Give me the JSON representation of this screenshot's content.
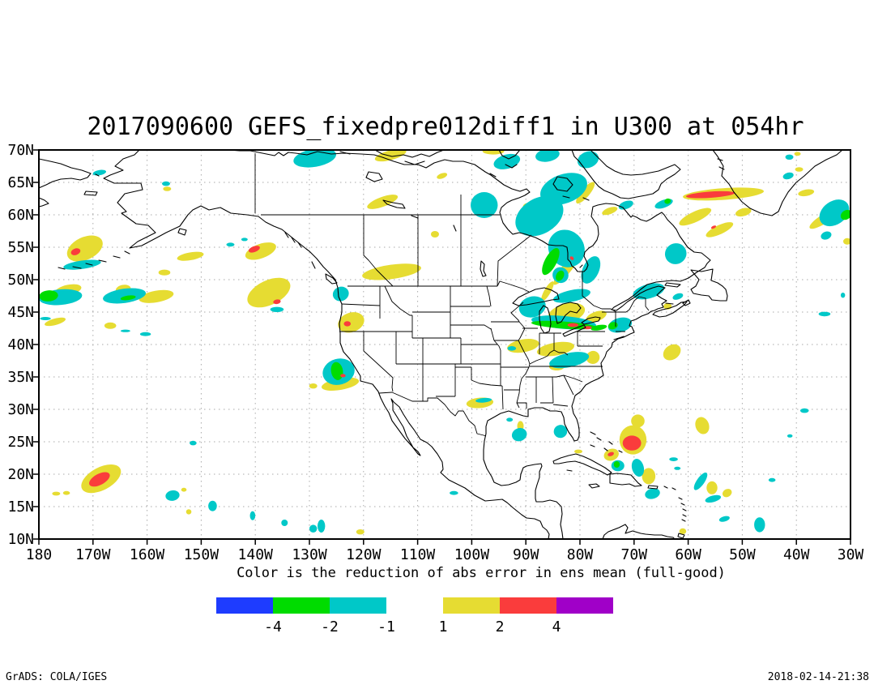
{
  "title": "2017090600 GEFS_fixedpre012diff1 in U300 at 054hr",
  "caption": "Color is the reduction of abs error in ens mean (full-good)",
  "footer": {
    "left": "GrADS: COLA/IGES",
    "right": "2018-02-14-21:38"
  },
  "axes": {
    "lat_labels": [
      "70N",
      "65N",
      "60N",
      "55N",
      "50N",
      "45N",
      "40N",
      "35N",
      "30N",
      "25N",
      "20N",
      "15N",
      "10N"
    ],
    "lon_labels": [
      "180",
      "170W",
      "160W",
      "150W",
      "140W",
      "130W",
      "120W",
      "110W",
      "100W",
      "90W",
      "80W",
      "70W",
      "60W",
      "50W",
      "40W",
      "30W"
    ]
  },
  "colorbar": {
    "left_segments": [
      {
        "color": "#1e3cff",
        "label": "-4"
      },
      {
        "color": "#00dc00",
        "label": "-2"
      },
      {
        "color": "#00c8c8",
        "label": "-1"
      }
    ],
    "right_segments": [
      {
        "color": "#e6dc32",
        "label": "1"
      },
      {
        "color": "#fa3c3c",
        "label": "2"
      },
      {
        "color": "#a000c8",
        "label": "4"
      }
    ]
  },
  "chart_data": {
    "type": "filled-contour-map",
    "title": "2017090600 GEFS_fixedpre012diff1 in U300 at 054hr",
    "subtitle": "Color is the reduction of abs error in ens mean (full-good)",
    "projection": "latlon",
    "lon_range": [
      -180,
      -30
    ],
    "lat_range": [
      10,
      70
    ],
    "lon_tick_step_deg": 10,
    "lat_tick_step_deg": 5,
    "grid": "dotted",
    "levels": [
      -4,
      -2,
      -1,
      1,
      2,
      4
    ],
    "level_colors": {
      "-4": "#1e3cff",
      "-2": "#00dc00",
      "-1": "#00c8c8",
      "1": "#e6dc32",
      "2": "#fa3c3c",
      "4": "#a000c8"
    },
    "grid_color": "#aaaaaa",
    "region_fields": [
      "lon_center",
      "lat_center",
      "width_deg",
      "height_deg",
      "rotation_deg",
      "level"
    ],
    "anomaly_regions": [
      [
        -171.5,
        54.8,
        7,
        3.5,
        -25,
        1
      ],
      [
        -174.6,
        48.4,
        5,
        1.6,
        -12,
        1
      ],
      [
        -164.4,
        48.5,
        2.8,
        1.4,
        -10,
        1
      ],
      [
        -158.3,
        47.4,
        6.5,
        1.8,
        -10,
        1
      ],
      [
        -152,
        53.6,
        5,
        1.2,
        -10,
        1
      ],
      [
        -156.8,
        51.1,
        2.2,
        0.9,
        0,
        1
      ],
      [
        -156.3,
        64,
        1.5,
        0.7,
        0,
        1
      ],
      [
        -139,
        54.4,
        6,
        2.2,
        -20,
        1
      ],
      [
        -137.5,
        48,
        8.5,
        3.8,
        -25,
        1
      ],
      [
        -177,
        43.5,
        4,
        1,
        -15,
        1
      ],
      [
        -166.8,
        42.9,
        2.2,
        1,
        0,
        1
      ],
      [
        -168.5,
        19.3,
        8,
        3.5,
        -28,
        1
      ],
      [
        -176.8,
        17,
        1.5,
        0.6,
        0,
        1
      ],
      [
        -174.9,
        17.1,
        1.3,
        0.6,
        0,
        1
      ],
      [
        -153.2,
        17.6,
        1,
        0.6,
        0,
        1
      ],
      [
        -152.3,
        14.2,
        1,
        0.8,
        0,
        1
      ],
      [
        -120.6,
        11.1,
        1.5,
        0.8,
        0,
        1
      ],
      [
        -122.3,
        43.4,
        5,
        3,
        -20,
        1
      ],
      [
        -124.3,
        33.9,
        7,
        1.8,
        -10,
        1
      ],
      [
        -129.3,
        33.6,
        1.5,
        0.8,
        0,
        1
      ],
      [
        -114.8,
        51.2,
        11,
        2.2,
        -8,
        1
      ],
      [
        -116.5,
        62,
        6,
        1.5,
        -20,
        1
      ],
      [
        -115,
        69.2,
        6,
        1.5,
        -15,
        1
      ],
      [
        -96,
        69.8,
        4,
        1,
        0,
        1
      ],
      [
        -105.5,
        66,
        2,
        0.8,
        -20,
        1
      ],
      [
        -106.8,
        57,
        1.5,
        1,
        0,
        1
      ],
      [
        -98.5,
        31,
        5,
        1.6,
        -5,
        1
      ],
      [
        -90.5,
        39.8,
        6,
        2,
        -10,
        1
      ],
      [
        -84.5,
        39.3,
        7,
        2,
        -10,
        1
      ],
      [
        -77.6,
        38,
        2.5,
        2,
        -20,
        1
      ],
      [
        -82.5,
        44.8,
        7,
        3,
        -15,
        1
      ],
      [
        -77,
        44.3,
        4,
        1.5,
        -20,
        1
      ],
      [
        -84.3,
        36.6,
        2.8,
        1.2,
        0,
        1
      ],
      [
        -82.2,
        52,
        1.8,
        7,
        38,
        1
      ],
      [
        -86,
        48.2,
        1.2,
        3.5,
        30,
        1
      ],
      [
        -79,
        63.4,
        1.6,
        4.2,
        40,
        1
      ],
      [
        -74.5,
        60.6,
        3,
        1,
        -20,
        1
      ],
      [
        -89.8,
        61.2,
        1.5,
        1.2,
        0,
        1
      ],
      [
        -89.3,
        59.7,
        1.2,
        0.9,
        0,
        1
      ],
      [
        -53.5,
        63.2,
        15,
        1.8,
        -4,
        1
      ],
      [
        -38.2,
        63.4,
        3,
        1,
        -10,
        1
      ],
      [
        -58.7,
        59.7,
        6.5,
        1.6,
        -25,
        1
      ],
      [
        -49.8,
        60.4,
        3,
        1.2,
        -15,
        1
      ],
      [
        -54.2,
        57.7,
        5.5,
        1.4,
        -25,
        1
      ],
      [
        -39.5,
        67,
        1.5,
        0.7,
        0,
        1
      ],
      [
        -39.8,
        69.4,
        1.2,
        0.6,
        0,
        1
      ],
      [
        -35,
        59.3,
        6,
        1.4,
        -32,
        1
      ],
      [
        -30.6,
        55.9,
        1.5,
        1,
        0,
        1
      ],
      [
        -63.8,
        45.9,
        1.5,
        1,
        0,
        1
      ],
      [
        -63,
        38.8,
        3.5,
        2.2,
        -35,
        1
      ],
      [
        -57.4,
        27.5,
        2.5,
        2.7,
        -20,
        1
      ],
      [
        -70.2,
        25.3,
        5,
        4.5,
        0,
        1
      ],
      [
        -69.3,
        28.2,
        2.5,
        2,
        0,
        1
      ],
      [
        -74.2,
        23,
        2.8,
        1.8,
        -20,
        1
      ],
      [
        -67.3,
        19.7,
        2.5,
        2.5,
        0,
        1
      ],
      [
        -55.6,
        17.9,
        2,
        2,
        0,
        1
      ],
      [
        -52.8,
        17.1,
        1.8,
        1.2,
        -30,
        1
      ],
      [
        -61,
        11.2,
        1.3,
        0.9,
        0,
        1
      ],
      [
        -91,
        27.4,
        1.2,
        1.6,
        0,
        1
      ],
      [
        -80.3,
        23.5,
        1.5,
        0.6,
        0,
        1
      ],
      [
        -172,
        52.3,
        7,
        1.3,
        -8,
        -1
      ],
      [
        -176,
        47.3,
        8,
        2.4,
        -5,
        -1
      ],
      [
        -164.2,
        47.5,
        8,
        2.2,
        -8,
        -1
      ],
      [
        -156.5,
        64.8,
        1.5,
        0.7,
        0,
        -1
      ],
      [
        -168.8,
        66.5,
        2.5,
        0.8,
        -10,
        -1
      ],
      [
        -144.6,
        55.4,
        1.5,
        0.6,
        0,
        -1
      ],
      [
        -142,
        56.2,
        1.2,
        0.5,
        0,
        -1
      ],
      [
        -136,
        45.4,
        2.5,
        0.8,
        0,
        -1
      ],
      [
        -160.3,
        41.6,
        2,
        0.6,
        0,
        -1
      ],
      [
        -178.8,
        44,
        2,
        0.5,
        0,
        -1
      ],
      [
        -164,
        42.1,
        1.8,
        0.4,
        0,
        -1
      ],
      [
        -129,
        68.8,
        8,
        2.8,
        -10,
        -1
      ],
      [
        -93.5,
        68.2,
        5,
        2.2,
        -15,
        -1
      ],
      [
        -86,
        69.2,
        4.5,
        2,
        -10,
        -1
      ],
      [
        -78.5,
        68.5,
        4,
        2.5,
        -20,
        -1
      ],
      [
        -97.7,
        61.5,
        5,
        4,
        0,
        -1
      ],
      [
        -83,
        64,
        9,
        4.5,
        -20,
        -1
      ],
      [
        -87.5,
        59.8,
        9.5,
        5.5,
        -30,
        -1
      ],
      [
        -82.5,
        54.8,
        6.5,
        6,
        -38,
        -1
      ],
      [
        -78,
        51.5,
        3,
        4.5,
        25,
        -1
      ],
      [
        -83.6,
        50.7,
        3,
        2.4,
        40,
        -1
      ],
      [
        -124.2,
        47.8,
        3,
        2.2,
        -20,
        -1
      ],
      [
        -124.6,
        35.8,
        6,
        4,
        -15,
        -1
      ],
      [
        -151.5,
        24.8,
        1.3,
        0.7,
        0,
        -1
      ],
      [
        -155.3,
        16.7,
        2.6,
        1.6,
        -10,
        -1
      ],
      [
        -147.9,
        15.1,
        1.6,
        1.6,
        0,
        -1
      ],
      [
        -140.5,
        13.6,
        1,
        1.4,
        0,
        -1
      ],
      [
        -134.6,
        12.5,
        1.2,
        1,
        0,
        -1
      ],
      [
        -129.3,
        11.6,
        1.4,
        1.2,
        0,
        -1
      ],
      [
        -127.8,
        12,
        1.4,
        2,
        0,
        -1
      ],
      [
        -97.8,
        31.4,
        3,
        0.7,
        -5,
        -1
      ],
      [
        -91.2,
        26.1,
        2.8,
        2,
        -20,
        -1
      ],
      [
        -83.6,
        26.6,
        2.5,
        2,
        -15,
        -1
      ],
      [
        -93,
        28.4,
        1.2,
        0.6,
        0,
        -1
      ],
      [
        -82,
        37.6,
        7.5,
        2.2,
        -12,
        -1
      ],
      [
        -88.8,
        45.8,
        5,
        3.2,
        -15,
        -1
      ],
      [
        -81.5,
        47.5,
        7,
        1.8,
        -12,
        -1
      ],
      [
        -83,
        43.4,
        12,
        2,
        5,
        -1
      ],
      [
        -72.6,
        43,
        4.5,
        2.2,
        -15,
        -1
      ],
      [
        -67.3,
        48.2,
        6,
        2.2,
        -15,
        -1
      ],
      [
        -61.9,
        47.4,
        2,
        0.9,
        -20,
        -1
      ],
      [
        -62.3,
        54,
        4,
        3.2,
        -25,
        -1
      ],
      [
        -64.5,
        61.7,
        3.5,
        1.2,
        -20,
        -1
      ],
      [
        -71.5,
        61.5,
        2.8,
        1.2,
        -20,
        -1
      ],
      [
        -33,
        60.3,
        6,
        3.6,
        -35,
        -1
      ],
      [
        -34.5,
        56.8,
        2,
        1.2,
        -20,
        -1
      ],
      [
        -41.5,
        66,
        2,
        1,
        -15,
        -1
      ],
      [
        -41.3,
        68.9,
        1.5,
        0.8,
        0,
        -1
      ],
      [
        -73,
        21.3,
        2.4,
        1.7,
        0,
        -1
      ],
      [
        -69.3,
        21,
        2.2,
        2.8,
        -15,
        -1
      ],
      [
        -66.6,
        17,
        2.8,
        1.6,
        -15,
        -1
      ],
      [
        -62.7,
        22.3,
        1.6,
        0.6,
        0,
        -1
      ],
      [
        -62,
        20.9,
        1.2,
        0.5,
        0,
        -1
      ],
      [
        -57.7,
        18.9,
        1.4,
        3.2,
        35,
        -1
      ],
      [
        -55.4,
        16.2,
        3,
        1,
        -15,
        -1
      ],
      [
        -44.5,
        19.1,
        1.3,
        0.6,
        0,
        -1
      ],
      [
        -38.5,
        29.8,
        1.6,
        0.7,
        0,
        -1
      ],
      [
        -41.2,
        25.9,
        1,
        0.5,
        0,
        -1
      ],
      [
        -34.8,
        44.7,
        2.2,
        0.7,
        0,
        -1
      ],
      [
        -31.4,
        47.6,
        0.8,
        0.8,
        0,
        -1
      ],
      [
        -46.8,
        12.2,
        2,
        2.3,
        0,
        -1
      ],
      [
        -53.3,
        13.1,
        2,
        0.8,
        -15,
        -1
      ],
      [
        -103.3,
        17.1,
        1.6,
        0.6,
        0,
        -1
      ],
      [
        -92.6,
        39.4,
        1.6,
        0.7,
        0,
        -1
      ],
      [
        -178.2,
        47.5,
        3.5,
        1.7,
        -5,
        -2
      ],
      [
        -163.5,
        47.2,
        2.8,
        0.7,
        -8,
        -2
      ],
      [
        -124.9,
        35.9,
        2.2,
        2.8,
        -10,
        -2
      ],
      [
        -73.9,
        42.9,
        1.8,
        1.1,
        -15,
        -2
      ],
      [
        -30.8,
        60,
        2.2,
        1.4,
        -35,
        -2
      ],
      [
        -73.2,
        21.5,
        1.1,
        1,
        0,
        -2
      ],
      [
        -85.4,
        52.8,
        2.2,
        4.6,
        28,
        -2
      ],
      [
        -83.7,
        50.6,
        1.4,
        1.7,
        28,
        -2
      ],
      [
        -83,
        43,
        12,
        1.1,
        4,
        -2
      ],
      [
        -76.5,
        42.6,
        3,
        0.8,
        -10,
        -2
      ],
      [
        -63.8,
        62.1,
        1.2,
        0.8,
        -20,
        -2
      ],
      [
        -173.2,
        54.3,
        1.8,
        1,
        -20,
        2
      ],
      [
        -140.2,
        54.7,
        2.2,
        0.9,
        -20,
        2
      ],
      [
        -136,
        46.6,
        1.4,
        0.7,
        -10,
        2
      ],
      [
        -168.8,
        19.2,
        4.2,
        1.7,
        -28,
        2
      ],
      [
        -123,
        43.2,
        1.3,
        0.8,
        0,
        2
      ],
      [
        -123.8,
        35.2,
        1,
        0.5,
        0,
        2
      ],
      [
        -55.9,
        63.1,
        9,
        0.95,
        -4,
        2
      ],
      [
        -55.3,
        58.1,
        1,
        0.4,
        -25,
        2
      ],
      [
        -70.4,
        24.8,
        3.4,
        2.3,
        0,
        2
      ],
      [
        -74.3,
        23.1,
        1.2,
        0.6,
        -20,
        2
      ],
      [
        -81.3,
        43,
        2,
        0.6,
        0,
        2
      ],
      [
        -78.6,
        42.6,
        1.6,
        0.5,
        0,
        2
      ],
      [
        -81.5,
        53.3,
        0.8,
        0.5,
        40,
        2
      ]
    ]
  }
}
